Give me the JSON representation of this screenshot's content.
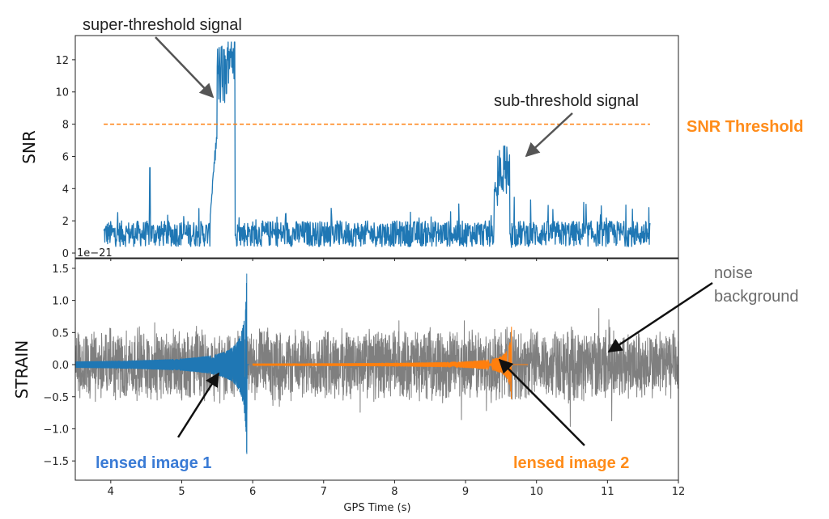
{
  "colors": {
    "snr_series": "#1f77b4",
    "threshold": "#ff7f0e",
    "noise": "#7f7f7f",
    "image1": "#1f77b4",
    "image2": "#ff7f0e",
    "threshold_text": "#ff8c1a",
    "image1_text": "#3a7bd5",
    "image2_text": "#ff8c1a",
    "annotation_text": "#222222",
    "noise_text": "#6b6b6b"
  },
  "chart_data": [
    {
      "type": "line",
      "ylabel": "SNR",
      "xlim": [
        3.5,
        12
      ],
      "ylim": [
        -0.3,
        13.5
      ],
      "yticks": [
        0,
        2,
        4,
        6,
        8,
        10,
        12
      ],
      "grid": false,
      "series": [
        {
          "name": "",
          "kind": "snr",
          "x_range": [
            3.9,
            11.6
          ],
          "baseline_mean": 1.2,
          "bursts": [
            {
              "x": [
                5.5,
                5.75
              ],
              "peak": 13.1
            },
            {
              "x": [
                9.45,
                9.62
              ],
              "peak": 6.8
            }
          ],
          "spikes": [
            {
              "x": 4.55,
              "y": 5.3
            }
          ]
        },
        {
          "name": "SNR Threshold",
          "kind": "threshold",
          "x": [
            3.9,
            11.6
          ],
          "y": 8
        }
      ],
      "annotations": [
        {
          "text": "super-threshold signal",
          "x": 5.48,
          "y": 10.2
        },
        {
          "text": "sub-threshold signal",
          "x": 9.62,
          "y": 6.0
        },
        {
          "text": "SNR Threshold"
        }
      ]
    },
    {
      "type": "line",
      "ylabel": "STRAIN",
      "xlabel": "GPS Time (s)",
      "y_scale_label": "1e−21",
      "xlim": [
        3.5,
        12
      ],
      "ylim": [
        -1.8,
        1.65
      ],
      "xticks": [
        4,
        5,
        6,
        7,
        8,
        9,
        10,
        11,
        12
      ],
      "yticks": [
        -1.5,
        -1.0,
        -0.5,
        0.0,
        0.5,
        1.0,
        1.5
      ],
      "grid": false,
      "series": [
        {
          "name": "noise background",
          "kind": "noise",
          "x_range": [
            3.5,
            12
          ],
          "amplitude": 0.55
        },
        {
          "name": "lensed image 1",
          "kind": "chirp",
          "x_range": [
            3.5,
            5.95
          ],
          "peak_amplitude": 1.6
        },
        {
          "name": "lensed image 2",
          "kind": "chirp",
          "x_range": [
            6.0,
            9.88
          ],
          "merger_x": 9.65,
          "peak_amplitude": 0.65
        }
      ],
      "annotations": [
        {
          "text": "noise background",
          "x": 11.0,
          "y": 0.2
        },
        {
          "text": "lensed image 1",
          "x": 5.55,
          "y": -0.15
        },
        {
          "text": "lensed image 2",
          "x": 9.45,
          "y": 0.05
        }
      ]
    }
  ],
  "labels": {
    "snr_axis": "SNR",
    "strain_axis": "STRAIN",
    "x_axis": "GPS Time (s)",
    "scale": "1e−21",
    "super_threshold": "super-threshold signal",
    "sub_threshold": "sub-threshold signal",
    "snr_threshold": "SNR Threshold",
    "noise_line1": "noise",
    "noise_line2": "background",
    "image1": "lensed image 1",
    "image2": "lensed image 2"
  },
  "tick_labels": {
    "snr_y": [
      "0",
      "2",
      "4",
      "6",
      "8",
      "10",
      "12"
    ],
    "strain_y": [
      "−1.5",
      "−1.0",
      "−0.5",
      "0.0",
      "0.5",
      "1.0",
      "1.5"
    ],
    "x": [
      "4",
      "5",
      "6",
      "7",
      "8",
      "9",
      "10",
      "11",
      "12"
    ]
  }
}
